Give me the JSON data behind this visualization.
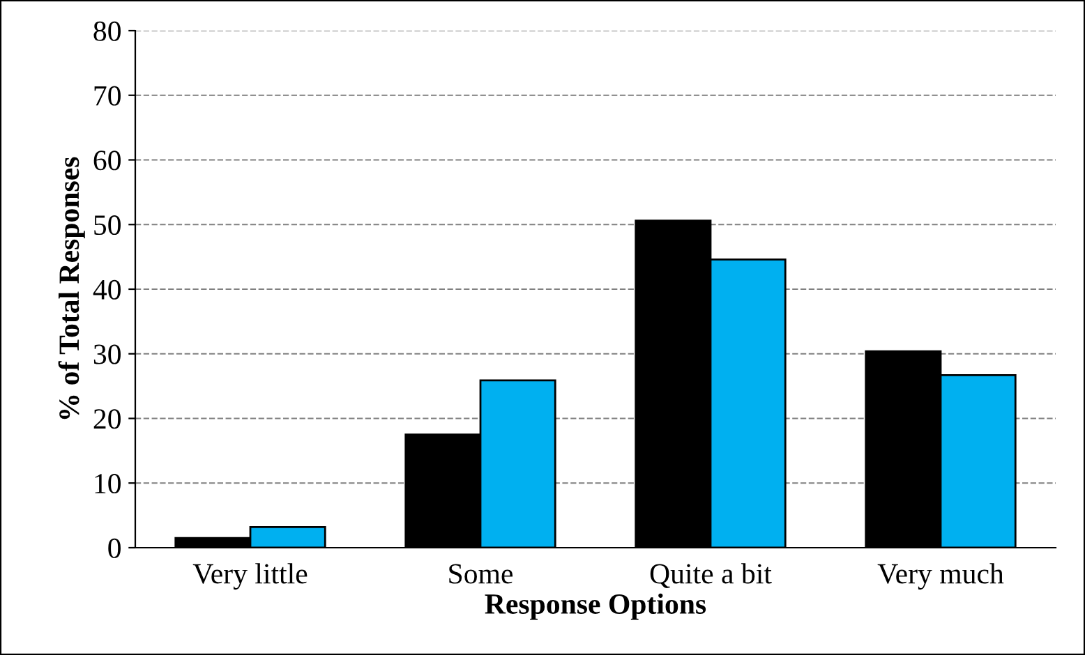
{
  "chart_data": {
    "type": "bar",
    "xlabel": "Response Options",
    "ylabel": "% of Total Responses",
    "categories": [
      "Very little",
      "Some",
      "Quite a bit",
      "Very much"
    ],
    "series": [
      {
        "color": "#000000",
        "values": [
          1.5,
          17.5,
          50.6,
          30.4
        ]
      },
      {
        "color": "#00b0f0",
        "values": [
          3.2,
          25.9,
          44.6,
          26.7
        ]
      }
    ],
    "ylim": [
      0,
      80
    ],
    "yticks": [
      0,
      10,
      20,
      30,
      40,
      50,
      60,
      70,
      80
    ],
    "grid": "y"
  }
}
